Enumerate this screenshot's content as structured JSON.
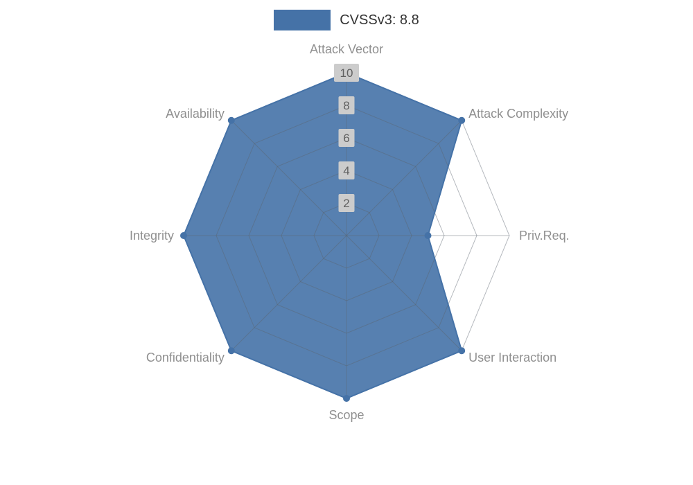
{
  "legend": {
    "label": "CVSSv3: 8.8"
  },
  "chart_data": {
    "type": "radar",
    "title": "CVSSv3: 8.8",
    "categories": [
      "Attack Vector",
      "Attack Complexity",
      "Priv.Req.",
      "User Interaction",
      "Scope",
      "Confidentiality",
      "Integrity",
      "Availability"
    ],
    "series": [
      {
        "name": "CVSSv3: 8.8",
        "values": [
          10,
          10,
          5,
          10,
          10,
          10,
          10,
          10
        ]
      }
    ],
    "axis": {
      "min": 0,
      "max": 10,
      "tick_interval": 2,
      "tick_labels": [
        "2",
        "4",
        "6",
        "8",
        "10"
      ]
    },
    "grid": {
      "rings": 5,
      "shape": "polygon",
      "spokes": true
    },
    "legend_position": "top",
    "colors": {
      "series_fill": "#4572a7",
      "series_stroke": "#4572a7",
      "grid_line": "#5a646e",
      "axis_label_text": "#909090",
      "tick_text": "#606060",
      "tick_bg": "#cccccc"
    }
  }
}
